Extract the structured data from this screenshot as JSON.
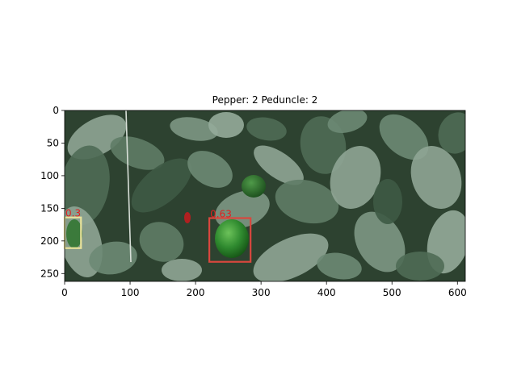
{
  "title": "Pepper: 2 Peduncle: 2",
  "axes": {
    "xlim": [
      0,
      612
    ],
    "ylim": [
      262,
      0
    ],
    "xticks": [
      "0",
      "100",
      "200",
      "300",
      "400",
      "500",
      "600"
    ],
    "yticks": [
      "0",
      "50",
      "100",
      "150",
      "200",
      "250"
    ]
  },
  "image": {
    "scene": "greenhouse-pepper-plants",
    "width_units": 612,
    "height_units": 262
  },
  "detections": [
    {
      "label": "0.3",
      "color": "#e8e29a",
      "box": {
        "x0": 0,
        "y0": 164,
        "x1": 25,
        "y1": 211
      }
    },
    {
      "label": "0.63",
      "color": "#d9473e",
      "box": {
        "x0": 221,
        "y0": 165,
        "x1": 284,
        "y1": 232
      }
    }
  ],
  "colors": {
    "foliage_dark": "#2d4230",
    "foliage_mid": "#4f6b55",
    "foliage_light": "#8fa595",
    "pepper": "#2f8a2f",
    "label_text": "#e02020"
  }
}
